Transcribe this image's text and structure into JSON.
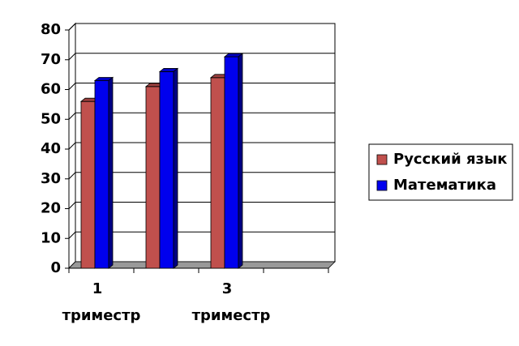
{
  "chart_data": {
    "type": "bar3d",
    "categories": [
      "1 триместр",
      null,
      "3 триместр",
      null
    ],
    "series": [
      {
        "name": "Русский язык",
        "color": "#c0504d",
        "values": [
          56,
          61,
          64,
          null
        ]
      },
      {
        "name": "Математика",
        "color": "#0000ee",
        "values": [
          63,
          66,
          71,
          null
        ]
      }
    ],
    "ylim": [
      0,
      80
    ],
    "yticks": [
      0,
      10,
      20,
      30,
      40,
      50,
      60,
      70,
      80
    ],
    "grid": true,
    "legend": "right"
  }
}
